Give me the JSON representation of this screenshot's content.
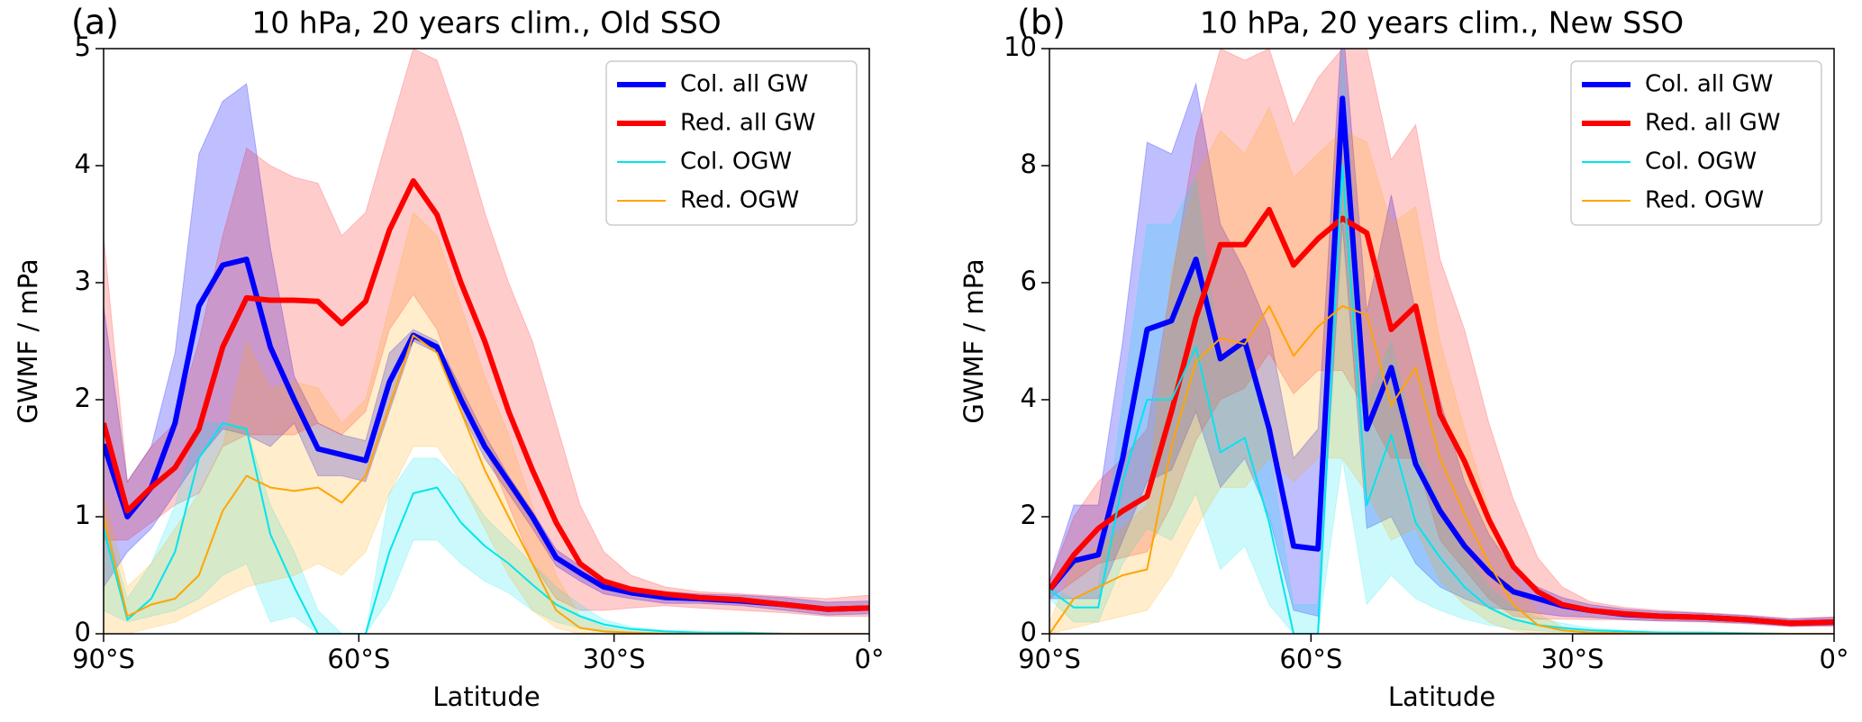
{
  "chart_data": [
    {
      "type": "line",
      "panel_label": "(a)",
      "title": "10 hPa, 20 years clim., Old SSO",
      "xlabel": "Latitude",
      "ylabel": "GWMF / mPa",
      "x": [
        -90,
        -87.2,
        -84.4,
        -81.6,
        -78.8,
        -76,
        -73.2,
        -70.4,
        -67.6,
        -64.8,
        -62,
        -59.2,
        -56.4,
        -53.6,
        -50.8,
        -48,
        -45.2,
        -42.4,
        -39.6,
        -36.8,
        -34,
        -31.2,
        -28,
        -24,
        -20,
        -15,
        -10,
        -5,
        0
      ],
      "xlim": [
        -90,
        0
      ],
      "xticks": [
        {
          "value": -90,
          "label": "90°S"
        },
        {
          "value": -60,
          "label": "60°S"
        },
        {
          "value": -30,
          "label": "30°S"
        },
        {
          "value": 0,
          "label": "0°"
        }
      ],
      "ylim": [
        0,
        5
      ],
      "yticks": [
        0,
        1,
        2,
        3,
        4,
        5
      ],
      "legend": "upper right",
      "series": [
        {
          "name": "Col. all GW",
          "color": "#0000ff",
          "values": [
            1.62,
            1.0,
            1.25,
            1.8,
            2.8,
            3.15,
            3.2,
            2.45,
            2.0,
            1.58,
            1.53,
            1.48,
            2.15,
            2.55,
            2.45,
            2.0,
            1.6,
            1.3,
            1.0,
            0.65,
            0.52,
            0.4,
            0.35,
            0.31,
            0.3,
            0.28,
            0.25,
            0.21,
            0.22
          ],
          "upper": [
            2.8,
            1.3,
            1.6,
            2.4,
            4.1,
            4.55,
            4.7,
            3.3,
            2.2,
            1.8,
            1.7,
            1.65,
            2.4,
            2.6,
            2.5,
            2.1,
            1.7,
            1.35,
            1.05,
            0.72,
            0.58,
            0.46,
            0.4,
            0.36,
            0.34,
            0.33,
            0.31,
            0.27,
            0.28
          ],
          "lower": [
            0.4,
            0.7,
            0.9,
            1.2,
            1.5,
            1.75,
            1.7,
            1.6,
            1.8,
            1.35,
            1.35,
            1.3,
            1.9,
            2.5,
            2.4,
            1.9,
            1.5,
            1.2,
            0.9,
            0.58,
            0.45,
            0.34,
            0.3,
            0.26,
            0.26,
            0.24,
            0.2,
            0.16,
            0.17
          ]
        },
        {
          "name": "Red. all GW",
          "color": "#ff0000",
          "values": [
            1.8,
            1.05,
            1.25,
            1.42,
            1.75,
            2.45,
            2.87,
            2.85,
            2.85,
            2.84,
            2.65,
            2.84,
            3.45,
            3.87,
            3.58,
            3.0,
            2.5,
            1.9,
            1.4,
            0.95,
            0.6,
            0.45,
            0.38,
            0.34,
            0.31,
            0.29,
            0.25,
            0.21,
            0.22
          ],
          "upper": [
            3.4,
            1.3,
            1.6,
            1.8,
            2.5,
            3.4,
            4.15,
            4.0,
            3.9,
            3.85,
            3.4,
            3.6,
            4.3,
            5.0,
            4.9,
            4.3,
            3.6,
            3.0,
            2.5,
            1.8,
            1.1,
            0.7,
            0.5,
            0.4,
            0.36,
            0.34,
            0.32,
            0.3,
            0.33
          ],
          "lower": [
            0.8,
            0.8,
            0.95,
            1.1,
            1.2,
            1.6,
            1.7,
            1.7,
            1.7,
            1.8,
            1.7,
            1.9,
            2.6,
            2.9,
            2.6,
            2.0,
            1.6,
            1.1,
            0.6,
            0.3,
            0.2,
            0.2,
            0.22,
            0.24,
            0.22,
            0.2,
            0.18,
            0.15,
            0.15
          ]
        },
        {
          "name": "Col. OGW",
          "color": "#00e5ee",
          "values": [
            0.9,
            0.12,
            0.3,
            0.7,
            1.5,
            1.8,
            1.75,
            0.85,
            0.4,
            0,
            0,
            0,
            0.7,
            1.2,
            1.25,
            0.95,
            0.75,
            0.6,
            0.42,
            0.25,
            0.15,
            0.08,
            0.04,
            0.02,
            0.01,
            0.01,
            0,
            0,
            0
          ],
          "upper": [
            1.0,
            0.3,
            0.6,
            1.1,
            1.8,
            1.8,
            1.75,
            1.1,
            0.7,
            0.2,
            0,
            0,
            1.2,
            1.5,
            1.5,
            1.3,
            1.0,
            0.8,
            0.6,
            0.4,
            0.25,
            0.12,
            0.06,
            0.03,
            0.02,
            0.01,
            0.01,
            0,
            0
          ],
          "lower": [
            0.2,
            0.1,
            0.15,
            0.2,
            0.3,
            0.5,
            0.6,
            0.1,
            0.15,
            0,
            0,
            0,
            0.3,
            0.8,
            0.8,
            0.6,
            0.45,
            0.35,
            0.2,
            0.1,
            0.05,
            0.03,
            0.01,
            0,
            0,
            0,
            0,
            0,
            0
          ]
        },
        {
          "name": "Red. OGW",
          "color": "#ffa500",
          "values": [
            1.0,
            0.15,
            0.25,
            0.3,
            0.5,
            1.05,
            1.35,
            1.25,
            1.22,
            1.25,
            1.12,
            1.35,
            1.95,
            2.55,
            2.4,
            1.9,
            1.4,
            1.0,
            0.6,
            0.2,
            0.05,
            0.02,
            0.01,
            0,
            0,
            0,
            0,
            0,
            0
          ],
          "upper": [
            1.2,
            0.4,
            0.6,
            0.9,
            1.2,
            1.6,
            2.5,
            2.1,
            2.15,
            2.1,
            1.8,
            2.0,
            2.8,
            3.6,
            3.4,
            2.8,
            2.2,
            1.7,
            1.1,
            0.5,
            0.15,
            0.06,
            0.02,
            0.01,
            0,
            0,
            0,
            0,
            0
          ],
          "lower": [
            0,
            0,
            0.05,
            0.1,
            0.2,
            0.3,
            0.4,
            0.45,
            0.5,
            0.6,
            0.5,
            0.7,
            1.2,
            1.6,
            1.6,
            1.3,
            0.9,
            0.5,
            0.2,
            0.05,
            0,
            0,
            0,
            0,
            0,
            0,
            0,
            0,
            0
          ]
        }
      ]
    },
    {
      "type": "line",
      "panel_label": "(b)",
      "title": "10 hPa, 20 years clim., New SSO",
      "xlabel": "Latitude",
      "ylabel": "GWMF / mPa",
      "x": [
        -90,
        -87.2,
        -84.4,
        -81.6,
        -78.8,
        -76,
        -73.2,
        -70.4,
        -67.6,
        -64.8,
        -62,
        -59.2,
        -56.4,
        -53.6,
        -50.8,
        -48,
        -45.2,
        -42.4,
        -39.6,
        -36.8,
        -34,
        -31.2,
        -28,
        -24,
        -20,
        -15,
        -10,
        -5,
        0
      ],
      "xlim": [
        -90,
        0
      ],
      "xticks": [
        {
          "value": -90,
          "label": "90°S"
        },
        {
          "value": -60,
          "label": "60°S"
        },
        {
          "value": -30,
          "label": "30°S"
        },
        {
          "value": 0,
          "label": "0°"
        }
      ],
      "ylim": [
        0,
        10
      ],
      "yticks": [
        0,
        2,
        4,
        6,
        8,
        10
      ],
      "legend": "upper right",
      "series": [
        {
          "name": "Col. all GW",
          "color": "#0000ff",
          "values": [
            0.75,
            1.25,
            1.35,
            3.0,
            5.2,
            5.35,
            6.4,
            4.7,
            5.0,
            3.5,
            1.5,
            1.45,
            9.15,
            3.5,
            4.55,
            2.9,
            2.1,
            1.5,
            1.05,
            0.72,
            0.6,
            0.48,
            0.4,
            0.33,
            0.3,
            0.28,
            0.24,
            0.18,
            0.2
          ],
          "upper": [
            0.9,
            2.2,
            2.2,
            5.0,
            8.4,
            8.2,
            9.4,
            7.0,
            6.2,
            5.2,
            3.0,
            3.5,
            10.5,
            5.5,
            7.5,
            5.5,
            4.0,
            2.6,
            1.7,
            1.1,
            0.8,
            0.62,
            0.5,
            0.42,
            0.38,
            0.35,
            0.31,
            0.25,
            0.28
          ],
          "lower": [
            0.6,
            0.6,
            0.6,
            1.6,
            2.6,
            2.8,
            3.8,
            2.5,
            3.0,
            2.0,
            0.4,
            0.3,
            7.0,
            1.8,
            2.0,
            1.2,
            0.8,
            0.6,
            0.45,
            0.4,
            0.35,
            0.3,
            0.28,
            0.24,
            0.22,
            0.21,
            0.18,
            0.13,
            0.14
          ]
        },
        {
          "name": "Red. all GW",
          "color": "#ff0000",
          "values": [
            0.75,
            1.35,
            1.8,
            2.1,
            2.35,
            3.8,
            5.4,
            6.65,
            6.65,
            7.25,
            6.3,
            6.75,
            7.1,
            6.85,
            5.2,
            5.6,
            3.75,
            2.95,
            1.95,
            1.15,
            0.72,
            0.5,
            0.4,
            0.34,
            0.3,
            0.28,
            0.24,
            0.18,
            0.2
          ],
          "upper": [
            0.9,
            2.0,
            2.6,
            3.0,
            3.5,
            6.0,
            8.5,
            10.0,
            9.8,
            10.0,
            8.7,
            9.5,
            10.0,
            10.0,
            8.1,
            8.7,
            6.4,
            5.2,
            3.6,
            2.3,
            1.3,
            0.8,
            0.55,
            0.45,
            0.4,
            0.36,
            0.32,
            0.26,
            0.29
          ],
          "lower": [
            0.6,
            0.9,
            1.2,
            1.3,
            1.4,
            2.2,
            3.3,
            4.0,
            4.2,
            4.8,
            4.1,
            4.5,
            4.5,
            3.8,
            3.0,
            3.0,
            1.6,
            1.1,
            0.6,
            0.3,
            0.25,
            0.25,
            0.24,
            0.24,
            0.22,
            0.2,
            0.17,
            0.12,
            0.13
          ]
        },
        {
          "name": "Col. OGW",
          "color": "#00e5ee",
          "values": [
            0.75,
            0.45,
            0.45,
            2.6,
            4.0,
            4.0,
            4.9,
            3.1,
            3.35,
            1.9,
            0,
            0,
            8.0,
            2.2,
            3.4,
            1.9,
            1.3,
            0.8,
            0.45,
            0.25,
            0.15,
            0.1,
            0.06,
            0.04,
            0.02,
            0.02,
            0.01,
            0,
            0
          ],
          "upper": [
            0.8,
            0.6,
            0.8,
            4.0,
            7.0,
            7.0,
            7.8,
            4.6,
            5.0,
            3.2,
            0.5,
            0.5,
            10.0,
            4.0,
            5.0,
            3.2,
            2.2,
            1.4,
            0.8,
            0.45,
            0.28,
            0.18,
            0.1,
            0.06,
            0.04,
            0.03,
            0.02,
            0,
            0
          ],
          "lower": [
            0.6,
            0.2,
            0.2,
            1.2,
            1.8,
            1.6,
            2.4,
            1.1,
            1.5,
            0.5,
            0,
            0,
            3.0,
            0.5,
            1.0,
            0.6,
            0.4,
            0.25,
            0.15,
            0.08,
            0.05,
            0.03,
            0.02,
            0.01,
            0,
            0,
            0,
            0,
            0
          ]
        },
        {
          "name": "Red. OGW",
          "color": "#ffa500",
          "values": [
            0,
            0.6,
            0.8,
            1.0,
            1.1,
            3.2,
            4.65,
            5.05,
            4.95,
            5.6,
            4.75,
            5.25,
            5.6,
            5.45,
            3.9,
            4.55,
            3.0,
            2.05,
            1.2,
            0.5,
            0.15,
            0.06,
            0.02,
            0.01,
            0,
            0,
            0,
            0,
            0
          ],
          "upper": [
            0.2,
            1.2,
            1.5,
            1.8,
            2.2,
            6.2,
            7.8,
            8.6,
            8.2,
            9.0,
            7.8,
            8.2,
            8.6,
            8.4,
            7.0,
            7.3,
            5.0,
            3.5,
            2.1,
            1.0,
            0.35,
            0.12,
            0.05,
            0.02,
            0.01,
            0,
            0,
            0,
            0
          ],
          "lower": [
            0,
            0.1,
            0.2,
            0.3,
            0.4,
            1.0,
            1.8,
            2.5,
            2.5,
            3.0,
            2.6,
            3.0,
            3.0,
            2.4,
            1.6,
            1.8,
            0.9,
            0.5,
            0.2,
            0.05,
            0,
            0,
            0,
            0,
            0,
            0,
            0,
            0,
            0
          ]
        }
      ]
    }
  ]
}
